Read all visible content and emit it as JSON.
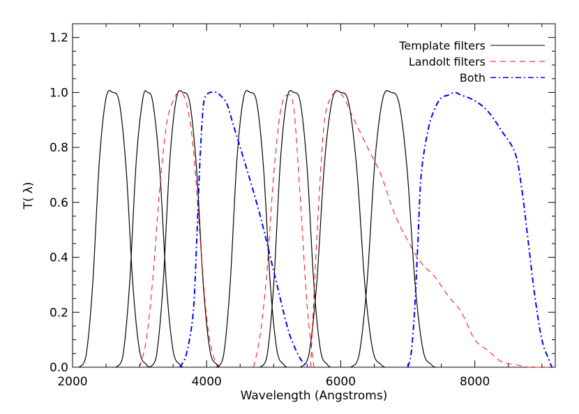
{
  "chart_data": {
    "type": "line",
    "title": "",
    "xlabel": "Wavelength (Angstroms)",
    "ylabel": "T( λ)",
    "xlim": [
      2000,
      9200
    ],
    "ylim": [
      0.0,
      1.25
    ],
    "x_ticks": [
      2000,
      4000,
      6000,
      8000
    ],
    "x_tick_labels": [
      "2000",
      "4000",
      "6000",
      "8000"
    ],
    "y_ticks": [
      0.0,
      0.2,
      0.4,
      0.6,
      0.8,
      1.0,
      1.2
    ],
    "y_tick_labels": [
      "0.0",
      "0.2",
      "0.4",
      "0.6",
      "0.8",
      "1.0",
      "1.2"
    ],
    "grid": false,
    "legend_position": "top-right",
    "legend": [
      {
        "label": "Template filters",
        "color": "#000000",
        "dash": "solid"
      },
      {
        "label": "Landolt filters",
        "color": "#ff0000",
        "dash": "dashed"
      },
      {
        "label": "Both",
        "color": "#0000ff",
        "dash": "dashdot"
      }
    ],
    "series": [
      {
        "group": "Template filters",
        "color": "#000000",
        "dash": "solid",
        "x": [
          2100,
          2200,
          2300,
          2400,
          2500,
          2600,
          2700,
          2800,
          2900,
          3000,
          3100,
          3150
        ],
        "y": [
          0.0,
          0.04,
          0.3,
          0.75,
          0.98,
          1.0,
          0.96,
          0.72,
          0.3,
          0.06,
          0.01,
          0.0
        ]
      },
      {
        "group": "Template filters",
        "color": "#000000",
        "dash": "solid",
        "x": [
          2650,
          2750,
          2850,
          2950,
          3050,
          3120,
          3200,
          3300,
          3400,
          3500,
          3600,
          3650
        ],
        "y": [
          0.0,
          0.04,
          0.3,
          0.75,
          0.98,
          1.0,
          0.96,
          0.72,
          0.3,
          0.06,
          0.01,
          0.0
        ]
      },
      {
        "group": "Template filters",
        "color": "#000000",
        "dash": "solid",
        "x": [
          3150,
          3250,
          3350,
          3450,
          3550,
          3650,
          3750,
          3850,
          3950,
          4050,
          4150,
          4200
        ],
        "y": [
          0.0,
          0.04,
          0.3,
          0.75,
          0.98,
          1.0,
          0.96,
          0.72,
          0.3,
          0.06,
          0.01,
          0.0
        ]
      },
      {
        "group": "Template filters",
        "color": "#000000",
        "dash": "solid",
        "x": [
          4150,
          4250,
          4350,
          4450,
          4550,
          4650,
          4750,
          4850,
          4950,
          5050,
          5150,
          5200
        ],
        "y": [
          0.0,
          0.04,
          0.3,
          0.75,
          0.98,
          1.0,
          0.96,
          0.72,
          0.3,
          0.06,
          0.01,
          0.0
        ]
      },
      {
        "group": "Template filters",
        "color": "#000000",
        "dash": "solid",
        "x": [
          4800,
          4900,
          5000,
          5100,
          5200,
          5300,
          5400,
          5500,
          5600,
          5700,
          5800,
          5850
        ],
        "y": [
          0.0,
          0.04,
          0.3,
          0.75,
          0.98,
          1.0,
          0.96,
          0.72,
          0.3,
          0.06,
          0.01,
          0.0
        ]
      },
      {
        "group": "Template filters",
        "color": "#000000",
        "dash": "solid",
        "x": [
          5400,
          5520,
          5640,
          5760,
          5880,
          6000,
          6120,
          6240,
          6360,
          6480,
          6600,
          6660
        ],
        "y": [
          0.0,
          0.04,
          0.3,
          0.75,
          0.98,
          1.0,
          0.96,
          0.72,
          0.3,
          0.06,
          0.01,
          0.0
        ]
      },
      {
        "group": "Template filters",
        "color": "#000000",
        "dash": "solid",
        "x": [
          6150,
          6270,
          6390,
          6510,
          6630,
          6750,
          6870,
          6990,
          7110,
          7230,
          7350,
          7410
        ],
        "y": [
          0.0,
          0.04,
          0.3,
          0.75,
          0.98,
          1.0,
          0.96,
          0.72,
          0.3,
          0.06,
          0.01,
          0.0
        ]
      },
      {
        "group": "Landolt filters",
        "color": "#ff0000",
        "dash": "dashed",
        "x": [
          3000,
          3100,
          3200,
          3300,
          3400,
          3500,
          3600,
          3700,
          3800,
          3900,
          4000,
          4100,
          4200
        ],
        "y": [
          0.0,
          0.1,
          0.33,
          0.65,
          0.88,
          0.97,
          1.0,
          0.96,
          0.8,
          0.48,
          0.18,
          0.04,
          0.0
        ]
      },
      {
        "group": "Landolt filters",
        "color": "#ff0000",
        "dash": "dashed",
        "x": [
          4700,
          4800,
          4900,
          5000,
          5100,
          5200,
          5300,
          5400,
          5500,
          5600
        ],
        "y": [
          0.0,
          0.12,
          0.35,
          0.7,
          0.93,
          0.99,
          0.94,
          0.6,
          0.22,
          0.0
        ]
      },
      {
        "group": "Landolt filters",
        "color": "#ff0000",
        "dash": "dashed",
        "x": [
          5550,
          5650,
          5750,
          5850,
          5950,
          6050,
          6200,
          6400,
          6600,
          6800,
          7000,
          7200,
          7400,
          7600,
          7800,
          8000,
          8200,
          8400,
          8600,
          8800,
          9000,
          9100
        ],
        "y": [
          0.0,
          0.5,
          0.88,
          0.98,
          1.0,
          0.98,
          0.9,
          0.8,
          0.7,
          0.56,
          0.46,
          0.38,
          0.33,
          0.26,
          0.2,
          0.1,
          0.06,
          0.02,
          0.01,
          0.0,
          0.0,
          0.0
        ]
      },
      {
        "group": "Both",
        "color": "#0000ff",
        "dash": "dashdot",
        "x": [
          3600,
          3700,
          3800,
          3850,
          3900,
          3950,
          4000,
          4050,
          4100,
          4150,
          4200,
          4300,
          4400,
          4600,
          4800,
          5000,
          5200,
          5300,
          5400,
          5500
        ],
        "y": [
          0.0,
          0.05,
          0.2,
          0.45,
          0.75,
          0.95,
          0.99,
          1.0,
          1.0,
          1.0,
          0.99,
          0.96,
          0.88,
          0.72,
          0.55,
          0.35,
          0.15,
          0.08,
          0.03,
          0.0
        ]
      },
      {
        "group": "Both",
        "color": "#0000ff",
        "dash": "dashdot",
        "x": [
          7000,
          7050,
          7100,
          7150,
          7200,
          7300,
          7400,
          7500,
          7600,
          7700,
          7800,
          8000,
          8200,
          8400,
          8600,
          8700,
          8800,
          8900,
          9000,
          9100,
          9150
        ],
        "y": [
          0.0,
          0.05,
          0.2,
          0.45,
          0.7,
          0.86,
          0.94,
          0.98,
          0.99,
          1.0,
          0.99,
          0.97,
          0.93,
          0.86,
          0.78,
          0.65,
          0.45,
          0.25,
          0.1,
          0.03,
          0.0
        ]
      }
    ]
  }
}
